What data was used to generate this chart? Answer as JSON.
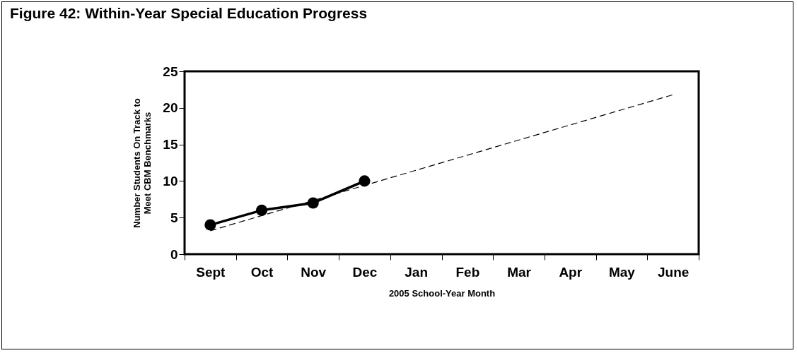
{
  "chart_data": {
    "type": "line",
    "title": "Figure 42: Within-Year Special Education Progress",
    "xlabel": "2005 School-Year Month",
    "ylabel": "Number Students On Track to\nMeet CBM Benchmarks",
    "categories": [
      "Sept",
      "Oct",
      "Nov",
      "Dec",
      "Jan",
      "Feb",
      "Mar",
      "Apr",
      "May",
      "June"
    ],
    "series": [
      {
        "color": "#000000",
        "values": [
          4,
          6,
          7,
          10,
          null,
          null,
          null,
          null,
          null,
          null
        ],
        "line_style": "solid"
      },
      {
        "type": "line",
        "x": [
          "Sept",
          "June"
        ],
        "values": [
          3.2,
          21.8
        ],
        "color": "#000000",
        "line_style": "dashed",
        "marker": "none"
      }
    ],
    "ylim": [
      0,
      25
    ],
    "yticks": [
      0,
      5,
      10,
      15,
      20,
      25
    ],
    "grid": false,
    "marker": "circle"
  }
}
